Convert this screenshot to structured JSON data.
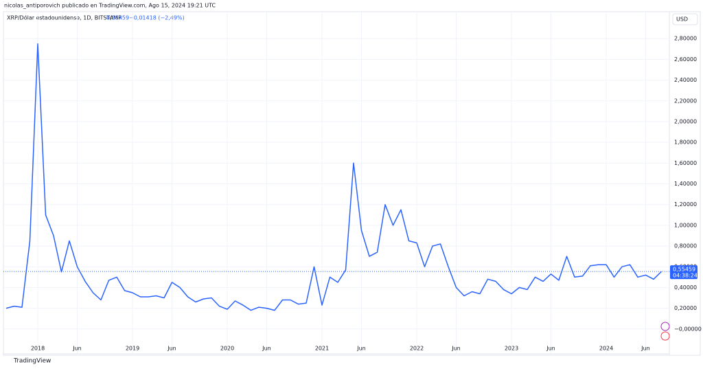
{
  "chart_data": {
    "type": "line",
    "title": "nicolas_antiporovich publicado en TradingView.com, Ago 15, 2024 19:21 UTC",
    "legend_change": "−0,01418 (−2,49%)",
    "currency": "USD",
    "watermark": "TradingView",
    "price_line": {
      "value": 0.55459,
      "label": "0,55459",
      "countdown": "04:38:24",
      "color": "#2962ff"
    },
    "x": [
      "2017-09",
      "2017-10",
      "2017-11",
      "2017-12",
      "2018-01",
      "2018-02",
      "2018-03",
      "2018-04",
      "2018-05",
      "2018-06",
      "2018-07",
      "2018-08",
      "2018-09",
      "2018-10",
      "2018-11",
      "2018-12",
      "2019-01",
      "2019-02",
      "2019-03",
      "2019-04",
      "2019-05",
      "2019-06",
      "2019-07",
      "2019-08",
      "2019-09",
      "2019-10",
      "2019-11",
      "2019-12",
      "2020-01",
      "2020-02",
      "2020-03",
      "2020-04",
      "2020-05",
      "2020-06",
      "2020-07",
      "2020-08",
      "2020-09",
      "2020-10",
      "2020-11",
      "2020-12",
      "2021-01",
      "2021-02",
      "2021-03",
      "2021-04",
      "2021-05",
      "2021-06",
      "2021-07",
      "2021-08",
      "2021-09",
      "2021-10",
      "2021-11",
      "2021-12",
      "2022-01",
      "2022-02",
      "2022-03",
      "2022-04",
      "2022-05",
      "2022-06",
      "2022-07",
      "2022-08",
      "2022-09",
      "2022-10",
      "2022-11",
      "2022-12",
      "2023-01",
      "2023-02",
      "2023-03",
      "2023-04",
      "2023-05",
      "2023-06",
      "2023-07",
      "2023-08",
      "2023-09",
      "2023-10",
      "2023-11",
      "2023-12",
      "2024-01",
      "2024-02",
      "2024-03",
      "2024-04",
      "2024-05",
      "2024-06",
      "2024-07",
      "2024-08"
    ],
    "series": [
      {
        "name": "XRP/Dólar estadounidense, 1D, BITSTAMP",
        "color": "#2962ff",
        "values": [
          0.2,
          0.22,
          0.21,
          0.85,
          2.75,
          1.1,
          0.9,
          0.55,
          0.85,
          0.6,
          0.46,
          0.35,
          0.28,
          0.47,
          0.5,
          0.37,
          0.35,
          0.31,
          0.31,
          0.32,
          0.3,
          0.45,
          0.4,
          0.31,
          0.26,
          0.29,
          0.3,
          0.22,
          0.19,
          0.27,
          0.23,
          0.18,
          0.21,
          0.2,
          0.18,
          0.28,
          0.28,
          0.24,
          0.25,
          0.6,
          0.23,
          0.5,
          0.45,
          0.57,
          1.6,
          0.95,
          0.7,
          0.74,
          1.2,
          1.0,
          1.15,
          0.85,
          0.83,
          0.6,
          0.8,
          0.82,
          0.6,
          0.4,
          0.32,
          0.36,
          0.34,
          0.48,
          0.46,
          0.38,
          0.34,
          0.4,
          0.38,
          0.5,
          0.46,
          0.53,
          0.47,
          0.7,
          0.5,
          0.51,
          0.61,
          0.62,
          0.62,
          0.5,
          0.6,
          0.62,
          0.5,
          0.52,
          0.48,
          0.55459
        ]
      }
    ],
    "xlim": [
      "2017-09",
      "2024-09"
    ],
    "xticks": [
      {
        "value": "2018-01",
        "label": "2018"
      },
      {
        "value": "2018-06",
        "label": "Jun"
      },
      {
        "value": "2019-01",
        "label": "2019"
      },
      {
        "value": "2019-06",
        "label": "Jun"
      },
      {
        "value": "2020-01",
        "label": "2020"
      },
      {
        "value": "2020-06",
        "label": "Jun"
      },
      {
        "value": "2021-01",
        "label": "2021"
      },
      {
        "value": "2021-06",
        "label": "Jun"
      },
      {
        "value": "2022-01",
        "label": "2022"
      },
      {
        "value": "2022-06",
        "label": "Jun"
      },
      {
        "value": "2023-01",
        "label": "2023"
      },
      {
        "value": "2023-06",
        "label": "Jun"
      },
      {
        "value": "2024-01",
        "label": "2024"
      },
      {
        "value": "2024-06",
        "label": "Jun"
      }
    ],
    "ylim": [
      -0.24,
      3.06
    ],
    "yticks": [
      {
        "value": 0,
        "label": "−0,00000"
      },
      {
        "value": 0.2,
        "label": "0,20000"
      },
      {
        "value": 0.4,
        "label": "0,40000"
      },
      {
        "value": 0.6,
        "label": "0,60000"
      },
      {
        "value": 0.8,
        "label": "0,80000"
      },
      {
        "value": 1,
        "label": "1,00000"
      },
      {
        "value": 1.2,
        "label": "1,20000"
      },
      {
        "value": 1.4,
        "label": "1,40000"
      },
      {
        "value": 1.6,
        "label": "1,60000"
      },
      {
        "value": 1.8,
        "label": "1,80000"
      },
      {
        "value": 2,
        "label": "2,00000"
      },
      {
        "value": 2.2,
        "label": "2,20000"
      },
      {
        "value": 2.4,
        "label": "2,40000"
      },
      {
        "value": 2.6,
        "label": "2,60000"
      },
      {
        "value": 2.8,
        "label": "2,80000"
      }
    ],
    "grid": true
  }
}
